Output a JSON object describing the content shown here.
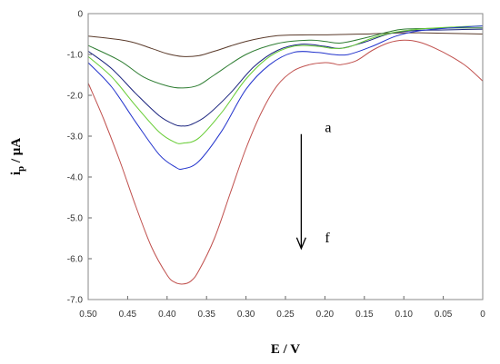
{
  "chart_data": {
    "type": "line",
    "title": "",
    "xlabel": "E / V",
    "ylabel": {
      "main": "i",
      "subscript": "p",
      "rest": " / μA"
    },
    "xlim": [
      0.5,
      0
    ],
    "ylim": [
      -7,
      0
    ],
    "x_reversed": true,
    "x_ticks": [
      {
        "value": 0.5,
        "label": "0.50"
      },
      {
        "value": 0.45,
        "label": "0.45"
      },
      {
        "value": 0.4,
        "label": "0.40"
      },
      {
        "value": 0.35,
        "label": "0.35"
      },
      {
        "value": 0.3,
        "label": "0.30"
      },
      {
        "value": 0.25,
        "label": "0.25"
      },
      {
        "value": 0.2,
        "label": "0.20"
      },
      {
        "value": 0.15,
        "label": "0.15"
      },
      {
        "value": 0.1,
        "label": "0.10"
      },
      {
        "value": 0.05,
        "label": "0.05"
      },
      {
        "value": 0,
        "label": "0"
      }
    ],
    "y_ticks": [
      {
        "value": 0,
        "label": "0"
      },
      {
        "value": -1,
        "label": "-1.0"
      },
      {
        "value": -2,
        "label": "-2.0"
      },
      {
        "value": -3,
        "label": "-3.0"
      },
      {
        "value": -4,
        "label": "-4.0"
      },
      {
        "value": -5,
        "label": "-5.0"
      },
      {
        "value": -6,
        "label": "-6.0"
      },
      {
        "value": -7,
        "label": "-7.0"
      }
    ],
    "grid": false,
    "legend": null,
    "series": [
      {
        "color": "#5a3a2a",
        "x": [
          0.5,
          0.45,
          0.42,
          0.4,
          0.38,
          0.36,
          0.34,
          0.3,
          0.26,
          0.22,
          0.2,
          0.18,
          0.15,
          0.12,
          0.1,
          0.08,
          0.05,
          0
        ],
        "y": [
          -0.55,
          -0.67,
          -0.85,
          -0.98,
          -1.05,
          -1.03,
          -0.92,
          -0.68,
          -0.54,
          -0.52,
          -0.52,
          -0.51,
          -0.5,
          -0.48,
          -0.47,
          -0.47,
          -0.48,
          -0.5
        ]
      },
      {
        "color": "#2e7d32",
        "x": [
          0.5,
          0.46,
          0.43,
          0.4,
          0.38,
          0.36,
          0.34,
          0.3,
          0.26,
          0.22,
          0.2,
          0.18,
          0.15,
          0.12,
          0.1,
          0.06,
          0.03,
          0
        ],
        "y": [
          -0.78,
          -1.15,
          -1.55,
          -1.77,
          -1.82,
          -1.75,
          -1.5,
          -1.0,
          -0.73,
          -0.65,
          -0.68,
          -0.72,
          -0.6,
          -0.45,
          -0.38,
          -0.36,
          -0.35,
          -0.35
        ]
      },
      {
        "color": "#1a237e",
        "x": [
          0.5,
          0.47,
          0.44,
          0.41,
          0.39,
          0.38,
          0.37,
          0.35,
          0.32,
          0.29,
          0.26,
          0.23,
          0.2,
          0.18,
          0.15,
          0.12,
          0.09,
          0.05,
          0
        ],
        "y": [
          -0.92,
          -1.35,
          -1.95,
          -2.5,
          -2.72,
          -2.75,
          -2.72,
          -2.5,
          -1.95,
          -1.3,
          -0.9,
          -0.75,
          -0.8,
          -0.85,
          -0.7,
          -0.5,
          -0.42,
          -0.4,
          -0.38
        ]
      },
      {
        "color": "#66cc33",
        "x": [
          0.5,
          0.47,
          0.44,
          0.41,
          0.39,
          0.38,
          0.36,
          0.33,
          0.3,
          0.27,
          0.24,
          0.21,
          0.19,
          0.17,
          0.14,
          0.11,
          0.08,
          0.04,
          0
        ],
        "y": [
          -1.05,
          -1.55,
          -2.25,
          -2.9,
          -3.15,
          -3.17,
          -3.05,
          -2.4,
          -1.6,
          -1.05,
          -0.8,
          -0.8,
          -0.85,
          -0.82,
          -0.6,
          -0.45,
          -0.38,
          -0.33,
          -0.3
        ]
      },
      {
        "color": "#2233cc",
        "x": [
          0.5,
          0.47,
          0.44,
          0.41,
          0.39,
          0.38,
          0.36,
          0.33,
          0.3,
          0.27,
          0.24,
          0.21,
          0.19,
          0.17,
          0.14,
          0.11,
          0.08,
          0.04,
          0
        ],
        "y": [
          -1.2,
          -1.8,
          -2.65,
          -3.45,
          -3.75,
          -3.8,
          -3.62,
          -2.85,
          -1.85,
          -1.25,
          -0.95,
          -0.95,
          -1.0,
          -1.0,
          -0.8,
          -0.55,
          -0.42,
          -0.35,
          -0.3
        ]
      },
      {
        "color": "#c0504d",
        "x": [
          0.5,
          0.48,
          0.46,
          0.44,
          0.42,
          0.4,
          0.39,
          0.38,
          0.37,
          0.36,
          0.34,
          0.32,
          0.3,
          0.28,
          0.26,
          0.24,
          0.22,
          0.2,
          0.19,
          0.18,
          0.16,
          0.14,
          0.12,
          0.1,
          0.08,
          0.06,
          0.04,
          0.02,
          0
        ],
        "y": [
          -1.7,
          -2.6,
          -3.6,
          -4.7,
          -5.7,
          -6.4,
          -6.58,
          -6.62,
          -6.55,
          -6.3,
          -5.5,
          -4.4,
          -3.3,
          -2.4,
          -1.75,
          -1.4,
          -1.25,
          -1.2,
          -1.22,
          -1.25,
          -1.15,
          -0.9,
          -0.72,
          -0.65,
          -0.7,
          -0.85,
          -1.05,
          -1.3,
          -1.65
        ]
      }
    ],
    "annotations": [
      {
        "text": "a",
        "x": 0.2,
        "y": -2.9
      },
      {
        "text": "f",
        "x": 0.2,
        "y": -5.6
      },
      {
        "type": "arrow",
        "x": 0.23,
        "from": -2.95,
        "to": -5.75
      }
    ]
  }
}
